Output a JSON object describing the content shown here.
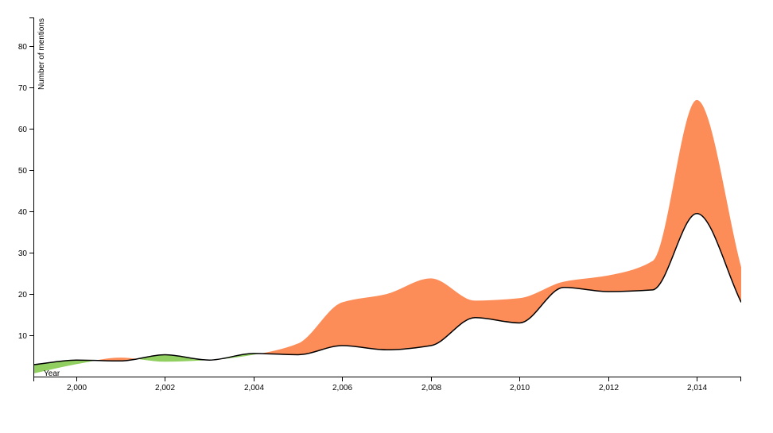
{
  "chart_data": {
    "type": "area",
    "title": "",
    "xlabel": "Year",
    "ylabel": "Number of mentions",
    "xlim": [
      1999.05,
      2015
    ],
    "ylim": [
      0,
      87
    ],
    "x_ticks": [
      2000,
      2002,
      2004,
      2006,
      2008,
      2010,
      2012,
      2014
    ],
    "x_tick_labels": [
      "2,000",
      "2,002",
      "2,004",
      "2,006",
      "2,008",
      "2,010",
      "2,012",
      "2,014"
    ],
    "y_ticks": [
      10,
      20,
      30,
      40,
      50,
      60,
      70,
      80
    ],
    "x": [
      1999.05,
      2000,
      2001,
      2002,
      2003,
      2004,
      2005,
      2006,
      2007,
      2008,
      2009,
      2010,
      2011,
      2012,
      2013,
      2014,
      2015
    ],
    "series": [
      {
        "values": [
          2.9,
          4.0,
          3.8,
          5.3,
          4.0,
          5.6,
          5.3,
          7.5,
          6.5,
          7.5,
          14.3,
          13.0,
          21.6,
          20.6,
          21.0,
          39.5,
          18.0
        ]
      },
      {
        "values": [
          0.8,
          3.0,
          4.6,
          3.6,
          4.0,
          5.3,
          8.0,
          18.0,
          20.0,
          23.8,
          18.4,
          19.0,
          23.0,
          24.5,
          28.0,
          67.0,
          26.5
        ]
      }
    ],
    "band_colors": {
      "second_above": "#fc8d59",
      "first_above": "#91cf60"
    },
    "line_color": "#000000"
  }
}
